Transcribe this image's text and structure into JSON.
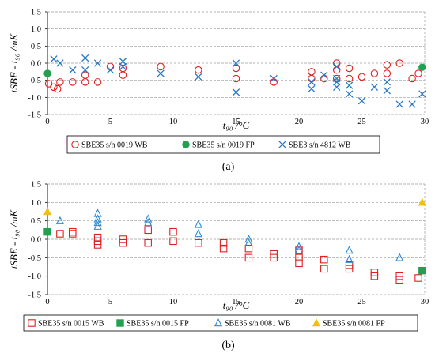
{
  "chart_data": [
    {
      "type": "scatter",
      "panel_label": "(a)",
      "xlabel": "t₉₀ /°C",
      "ylabel": "tSBE - t₉₀ /mK",
      "xlim": [
        0,
        30
      ],
      "ylim": [
        -1.5,
        1.5
      ],
      "xticks": [
        0,
        5,
        10,
        15,
        20,
        25,
        30
      ],
      "yticks": [
        1.5,
        1.0,
        0.5,
        0.0,
        -0.5,
        -1.0,
        -1.5
      ],
      "ytick_labels": [
        "1.5",
        "1.0",
        "0.5",
        "0.0",
        "-0.5",
        "-1.0",
        "-1.5"
      ],
      "xtick_labels": [
        "0",
        "5",
        "10",
        "15",
        "20",
        "25",
        "30"
      ],
      "grid": "horizontal dashed",
      "legend_position": "bottom",
      "series": [
        {
          "name": "SBE35 s/n 0019 WB",
          "marker": "circle-open",
          "color": "#e02020",
          "points": [
            [
              0.1,
              -0.6
            ],
            [
              0.5,
              -0.7
            ],
            [
              0.8,
              -0.75
            ],
            [
              1.0,
              -0.55
            ],
            [
              2.0,
              -0.55
            ],
            [
              3.0,
              -0.55
            ],
            [
              3.0,
              -0.35
            ],
            [
              4.0,
              -0.55
            ],
            [
              5.0,
              -0.1
            ],
            [
              6.0,
              -0.35
            ],
            [
              6.0,
              -0.15
            ],
            [
              9.0,
              -0.1
            ],
            [
              12.0,
              -0.2
            ],
            [
              15.0,
              -0.15
            ],
            [
              15.0,
              -0.45
            ],
            [
              18.0,
              -0.55
            ],
            [
              21.0,
              -0.25
            ],
            [
              21.0,
              -0.45
            ],
            [
              22.0,
              -0.45
            ],
            [
              23.0,
              0.0
            ],
            [
              23.0,
              -0.2
            ],
            [
              23.0,
              -0.45
            ],
            [
              24.0,
              -0.15
            ],
            [
              24.0,
              -0.45
            ],
            [
              25.0,
              -0.4
            ],
            [
              26.0,
              -0.3
            ],
            [
              27.0,
              -0.05
            ],
            [
              27.0,
              -0.3
            ],
            [
              28.0,
              0.0
            ],
            [
              29.0,
              -0.45
            ],
            [
              29.5,
              -0.3
            ]
          ]
        },
        {
          "name": "SBE35 s/n 0019 FP",
          "marker": "circle-filled",
          "color": "#20a050",
          "points": [
            [
              0.0,
              -0.3
            ],
            [
              29.8,
              -0.12
            ]
          ]
        },
        {
          "name": "SBE3 s/n 4812 WB",
          "marker": "x",
          "color": "#2878c8",
          "points": [
            [
              0.5,
              0.12
            ],
            [
              1.0,
              0.0
            ],
            [
              2.0,
              -0.2
            ],
            [
              3.0,
              0.15
            ],
            [
              3.0,
              -0.2
            ],
            [
              4.0,
              0.0
            ],
            [
              5.0,
              -0.2
            ],
            [
              6.0,
              0.05
            ],
            [
              6.0,
              -0.1
            ],
            [
              9.0,
              -0.3
            ],
            [
              12.0,
              -0.4
            ],
            [
              15.0,
              0.0
            ],
            [
              15.0,
              -0.85
            ],
            [
              18.0,
              -0.45
            ],
            [
              21.0,
              -0.55
            ],
            [
              21.0,
              -0.75
            ],
            [
              22.0,
              -0.35
            ],
            [
              23.0,
              -0.1
            ],
            [
              23.0,
              -0.45
            ],
            [
              23.0,
              -0.55
            ],
            [
              23.0,
              -0.7
            ],
            [
              24.0,
              -0.65
            ],
            [
              24.0,
              -0.9
            ],
            [
              25.0,
              -1.1
            ],
            [
              26.0,
              -0.7
            ],
            [
              27.0,
              -0.55
            ],
            [
              27.0,
              -0.8
            ],
            [
              28.0,
              -1.2
            ],
            [
              29.0,
              -1.2
            ],
            [
              29.8,
              -0.9
            ]
          ]
        }
      ]
    },
    {
      "type": "scatter",
      "panel_label": "(b)",
      "xlabel": "t₉₀ /°C",
      "ylabel": "tSBE - t₉₀ /mK",
      "xlim": [
        0,
        30
      ],
      "ylim": [
        -1.5,
        1.5
      ],
      "xticks": [
        0,
        5,
        10,
        15,
        20,
        25,
        30
      ],
      "yticks": [
        1.5,
        1.0,
        0.5,
        0.0,
        -0.5,
        -1.0,
        -1.5
      ],
      "ytick_labels": [
        "1.5",
        "1.0",
        "0.5",
        "0.0",
        "-0.5",
        "-1.0",
        "-1.5"
      ],
      "xtick_labels": [
        "0",
        "5",
        "10",
        "15",
        "20",
        "25",
        "30"
      ],
      "grid": "horizontal dashed",
      "legend_position": "bottom",
      "series": [
        {
          "name": "SBE35 s/n 0015 WB",
          "marker": "square-open",
          "color": "#e02020",
          "points": [
            [
              1.0,
              0.15
            ],
            [
              2.0,
              0.15
            ],
            [
              2.0,
              0.2
            ],
            [
              4.0,
              -0.05
            ],
            [
              4.0,
              -0.15
            ],
            [
              4.0,
              0.05
            ],
            [
              6.0,
              0.0
            ],
            [
              6.0,
              -0.1
            ],
            [
              8.0,
              0.25
            ],
            [
              8.0,
              -0.1
            ],
            [
              10.0,
              0.2
            ],
            [
              10.0,
              -0.05
            ],
            [
              12.0,
              -0.1
            ],
            [
              14.0,
              -0.1
            ],
            [
              14.0,
              -0.25
            ],
            [
              16.0,
              -0.25
            ],
            [
              16.0,
              -0.5
            ],
            [
              18.0,
              -0.4
            ],
            [
              18.0,
              -0.5
            ],
            [
              20.0,
              -0.3
            ],
            [
              20.0,
              -0.5
            ],
            [
              20.0,
              -0.65
            ],
            [
              22.0,
              -0.55
            ],
            [
              22.0,
              -0.8
            ],
            [
              24.0,
              -0.7
            ],
            [
              24.0,
              -0.8
            ],
            [
              26.0,
              -0.9
            ],
            [
              26.0,
              -1.0
            ],
            [
              28.0,
              -1.0
            ],
            [
              28.0,
              -1.1
            ],
            [
              29.5,
              -1.05
            ]
          ]
        },
        {
          "name": "SBE35 s/n 0015 FP",
          "marker": "square-filled",
          "color": "#20a050",
          "points": [
            [
              0.0,
              0.2
            ],
            [
              29.8,
              -0.85
            ]
          ]
        },
        {
          "name": "SBE35 s/n 0081 WB",
          "marker": "triangle-open",
          "color": "#2f8ad0",
          "points": [
            [
              1.0,
              0.5
            ],
            [
              4.0,
              0.7
            ],
            [
              4.0,
              0.55
            ],
            [
              4.0,
              0.45
            ],
            [
              4.0,
              0.35
            ],
            [
              8.0,
              0.55
            ],
            [
              8.0,
              0.45
            ],
            [
              12.0,
              0.4
            ],
            [
              12.0,
              0.15
            ],
            [
              16.0,
              0.0
            ],
            [
              16.0,
              -0.1
            ],
            [
              20.0,
              -0.2
            ],
            [
              20.0,
              -0.3
            ],
            [
              24.0,
              -0.3
            ],
            [
              24.0,
              -0.55
            ],
            [
              28.0,
              -0.5
            ]
          ]
        },
        {
          "name": "SBE35 s/n 0081 FP",
          "marker": "triangle-filled",
          "color": "#f0c010",
          "points": [
            [
              0.0,
              0.75
            ],
            [
              29.8,
              1.0
            ]
          ]
        }
      ]
    }
  ]
}
